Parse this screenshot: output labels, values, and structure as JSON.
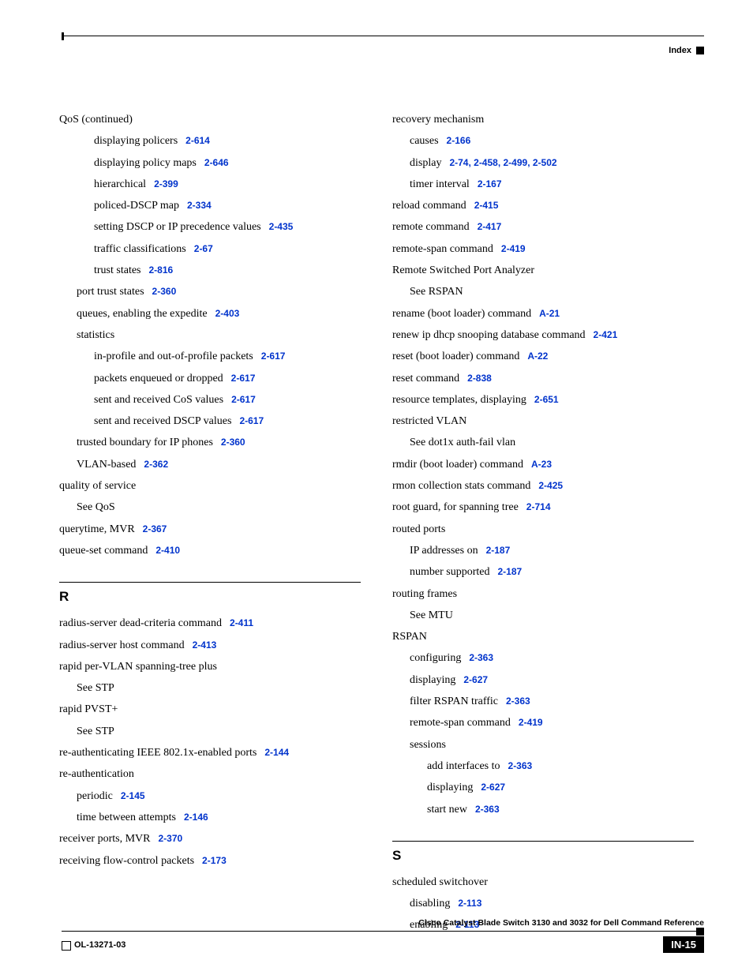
{
  "header": {
    "label": "Index"
  },
  "left": {
    "qos_cont": "QoS (continued)",
    "disp_policers": {
      "t": "displaying policers",
      "r": "2-614"
    },
    "disp_policy_maps": {
      "t": "displaying policy maps",
      "r": "2-646"
    },
    "hierarchical": {
      "t": "hierarchical",
      "r": "2-399"
    },
    "policed_dscp": {
      "t": "policed-DSCP map",
      "r": "2-334"
    },
    "set_dscp": {
      "t": "setting DSCP or IP precedence values",
      "r": "2-435"
    },
    "traffic_class": {
      "t": "traffic classifications",
      "r": "2-67"
    },
    "trust_states": {
      "t": "trust states",
      "r": "2-816"
    },
    "port_trust": {
      "t": "port trust states",
      "r": "2-360"
    },
    "queues_exp": {
      "t": "queues, enabling the expedite",
      "r": "2-403"
    },
    "statistics": "statistics",
    "in_profile": {
      "t": "in-profile and out-of-profile packets",
      "r": "2-617"
    },
    "pkts_enq": {
      "t": "packets enqueued or dropped",
      "r": "2-617"
    },
    "sent_cos": {
      "t": "sent and received CoS values",
      "r": "2-617"
    },
    "sent_dscp": {
      "t": "sent and received DSCP values",
      "r": "2-617"
    },
    "trusted_boundary": {
      "t": "trusted boundary for IP phones",
      "r": "2-360"
    },
    "vlan_based": {
      "t": "VLAN-based",
      "r": "2-362"
    },
    "qos_service": "quality of service",
    "see_qos": "See QoS",
    "querytime": {
      "t": "querytime, MVR",
      "r": "2-367"
    },
    "queue_set": {
      "t": "queue-set command",
      "r": "2-410"
    },
    "section_r": "R",
    "radius_dead": {
      "t": "radius-server dead-criteria command",
      "r": "2-411"
    },
    "radius_host": {
      "t": "radius-server host command",
      "r": "2-413"
    },
    "rapid_vlan": "rapid per-VLAN spanning-tree plus",
    "see_stp1": "See STP",
    "rapid_pvst": "rapid PVST+",
    "see_stp2": "See STP",
    "reauth_ports": {
      "t": "re-authenticating IEEE 802.1x-enabled ports",
      "r": "2-144"
    },
    "reauth": "re-authentication",
    "periodic": {
      "t": "periodic",
      "r": "2-145"
    },
    "time_between": {
      "t": "time between attempts",
      "r": "2-146"
    },
    "receiver_ports": {
      "t": "receiver ports, MVR",
      "r": "2-370"
    },
    "recv_flow": {
      "t": "receiving flow-control packets",
      "r": "2-173"
    }
  },
  "right": {
    "recovery": "recovery mechanism",
    "causes": {
      "t": "causes",
      "r": "2-166"
    },
    "display": {
      "t": "display",
      "r": "2-74, 2-458, 2-499, 2-502"
    },
    "timer": {
      "t": "timer interval",
      "r": "2-167"
    },
    "reload": {
      "t": "reload command",
      "r": "2-415"
    },
    "remote_cmd": {
      "t": "remote command",
      "r": "2-417"
    },
    "remote_span": {
      "t": "remote-span command",
      "r": "2-419"
    },
    "rspa_full": "Remote Switched Port Analyzer",
    "see_rspan": "See RSPAN",
    "rename": {
      "t": "rename (boot loader) command",
      "r": "A-21"
    },
    "renew_ip": {
      "t": "renew ip dhcp snooping database command",
      "r": "2-421"
    },
    "reset_boot": {
      "t": "reset (boot loader) command",
      "r": "A-22"
    },
    "reset_cmd": {
      "t": "reset command",
      "r": "2-838"
    },
    "resource_tpl": {
      "t": "resource templates, displaying",
      "r": "2-651"
    },
    "restricted_vlan": "restricted VLAN",
    "see_dot1x": "See dot1x auth-fail vlan",
    "rmdir": {
      "t": "rmdir (boot loader) command",
      "r": "A-23"
    },
    "rmon": {
      "t": "rmon collection stats command",
      "r": "2-425"
    },
    "root_guard": {
      "t": "root guard, for spanning tree",
      "r": "2-714"
    },
    "routed_ports": "routed ports",
    "ip_addr": {
      "t": "IP addresses on",
      "r": "2-187"
    },
    "num_sup": {
      "t": "number supported",
      "r": "2-187"
    },
    "routing_frames": "routing frames",
    "see_mtu": "See MTU",
    "rspan": "RSPAN",
    "configuring": {
      "t": "configuring",
      "r": "2-363"
    },
    "displaying": {
      "t": "displaying",
      "r": "2-627"
    },
    "filter_traffic": {
      "t": "filter RSPAN traffic",
      "r": "2-363"
    },
    "remote_span2": {
      "t": "remote-span command",
      "r": "2-419"
    },
    "sessions": "sessions",
    "add_if": {
      "t": "add interfaces to",
      "r": "2-363"
    },
    "displaying2": {
      "t": "displaying",
      "r": "2-627"
    },
    "start_new": {
      "t": "start new",
      "r": "2-363"
    },
    "section_s": "S",
    "sched_sw": "scheduled switchover",
    "disabling": {
      "t": "disabling",
      "r": "2-113"
    },
    "enabling": {
      "t": "enabling",
      "r": "2-113"
    }
  },
  "footer": {
    "title": "Cisco Catalyst Blade Switch 3130 and 3032 for Dell Command Reference",
    "doc": "OL-13271-03",
    "page": "IN-15"
  }
}
